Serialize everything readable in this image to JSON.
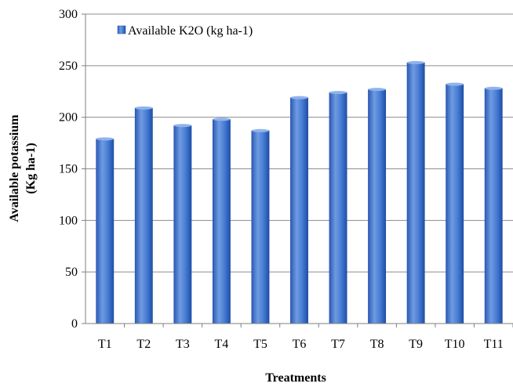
{
  "chart_data": {
    "type": "bar",
    "categories": [
      "T1",
      "T2",
      "T3",
      "T4",
      "T5",
      "T6",
      "T7",
      "T8",
      "T9",
      "T10",
      "T11"
    ],
    "series": [
      {
        "name": "Available K2O (kg ha-1)",
        "values": [
          179,
          209,
          192,
          198,
          187,
          219,
          224,
          227,
          253,
          232,
          228
        ]
      }
    ],
    "xlabel": "Treatments",
    "ylabel_lines": [
      "Available potassium",
      "(Kg ha-1)"
    ],
    "ylim": [
      0,
      300
    ],
    "yticks": [
      0,
      50,
      100,
      150,
      200,
      250,
      300
    ],
    "grid": true,
    "legend_position": "top-left",
    "colors": {
      "bar_light": "#6f9be0",
      "bar_mid": "#3a6fcf",
      "bar_dark": "#1f4fa8"
    }
  }
}
